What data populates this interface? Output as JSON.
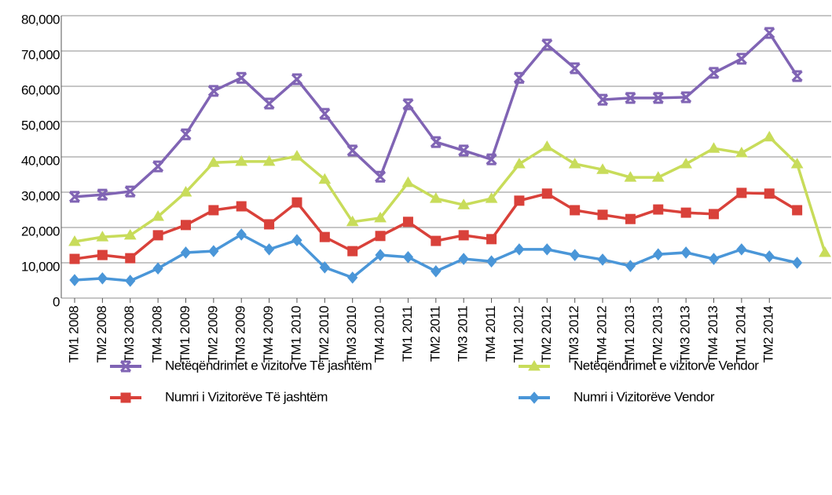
{
  "chart_data": {
    "type": "line",
    "categories": [
      "TM1 2008",
      "TM2 2008",
      "TM3 2008",
      "TM4 2008",
      "TM1 2009",
      "TM2 2009",
      "TM3 2009",
      "TM4 2009",
      "TM1 2010",
      "TM2 2010",
      "TM3 2010",
      "TM4 2010",
      "TM1 2011",
      "TM2 2011",
      "TM3 2011",
      "TM4 2011",
      "TM1 2012",
      "TM2 2012",
      "TM3 2012",
      "TM4 2012",
      "TM1 2013",
      "TM2 2013",
      "TM3 2013",
      "TM4 2013",
      "TM1 2014",
      "TM2 2014",
      null,
      null
    ],
    "series": [
      {
        "name": "Netëqëndrimet e vizitorve Të jashtëm",
        "color": "#8064b4",
        "marker": "x",
        "values": [
          28700,
          29300,
          30200,
          37300,
          46400,
          58700,
          62400,
          55100,
          62000,
          52200,
          41800,
          34400,
          54900,
          44200,
          41800,
          39300,
          62400,
          71800,
          65100,
          56200,
          56700,
          56700,
          56900,
          63800,
          67800,
          75100,
          62900,
          null
        ]
      },
      {
        "name": "Netëqëndrimet e vizitorve Vendor",
        "color": "#c8dc5a",
        "marker": "triangle",
        "values": [
          16000,
          17300,
          17800,
          23100,
          30000,
          38400,
          38700,
          38700,
          40200,
          33600,
          21600,
          22700,
          32700,
          28200,
          26400,
          28200,
          38000,
          42900,
          38000,
          36400,
          34200,
          34200,
          38000,
          42400,
          41100,
          45600,
          38000,
          12900
        ]
      },
      {
        "name": "Numri i Vizitorëve Të jashtëm",
        "color": "#d9413a",
        "marker": "square",
        "values": [
          11100,
          12200,
          11300,
          17800,
          20700,
          24900,
          26000,
          20900,
          27100,
          17300,
          13300,
          17600,
          21600,
          16200,
          17800,
          16700,
          27600,
          29600,
          24900,
          23600,
          22400,
          25100,
          24200,
          23800,
          29800,
          29600,
          24900,
          null
        ]
      },
      {
        "name": "Numri i Vizitorëve Vendor",
        "color": "#4a96d8",
        "marker": "diamond",
        "values": [
          5100,
          5600,
          4900,
          8400,
          12900,
          13300,
          18000,
          13800,
          16400,
          8700,
          5800,
          12200,
          11600,
          7600,
          11100,
          10400,
          13800,
          13800,
          12200,
          10900,
          9100,
          12400,
          12900,
          11100,
          13800,
          11800,
          10000,
          null
        ]
      }
    ],
    "ylim": [
      0,
      80000
    ],
    "yticks": [
      0,
      {
        "value": 10000,
        "label": "10,000"
      },
      {
        "value": 20000,
        "label": "20,000"
      },
      {
        "value": 30000,
        "label": "30,000"
      },
      {
        "value": 40000,
        "label": "40,000"
      },
      {
        "value": 50000,
        "label": "50,000"
      },
      {
        "value": 60000,
        "label": "60,000"
      },
      {
        "value": 70000,
        "label": "70,000"
      },
      {
        "value": 80000,
        "label": "80,000"
      }
    ],
    "grid": true
  }
}
